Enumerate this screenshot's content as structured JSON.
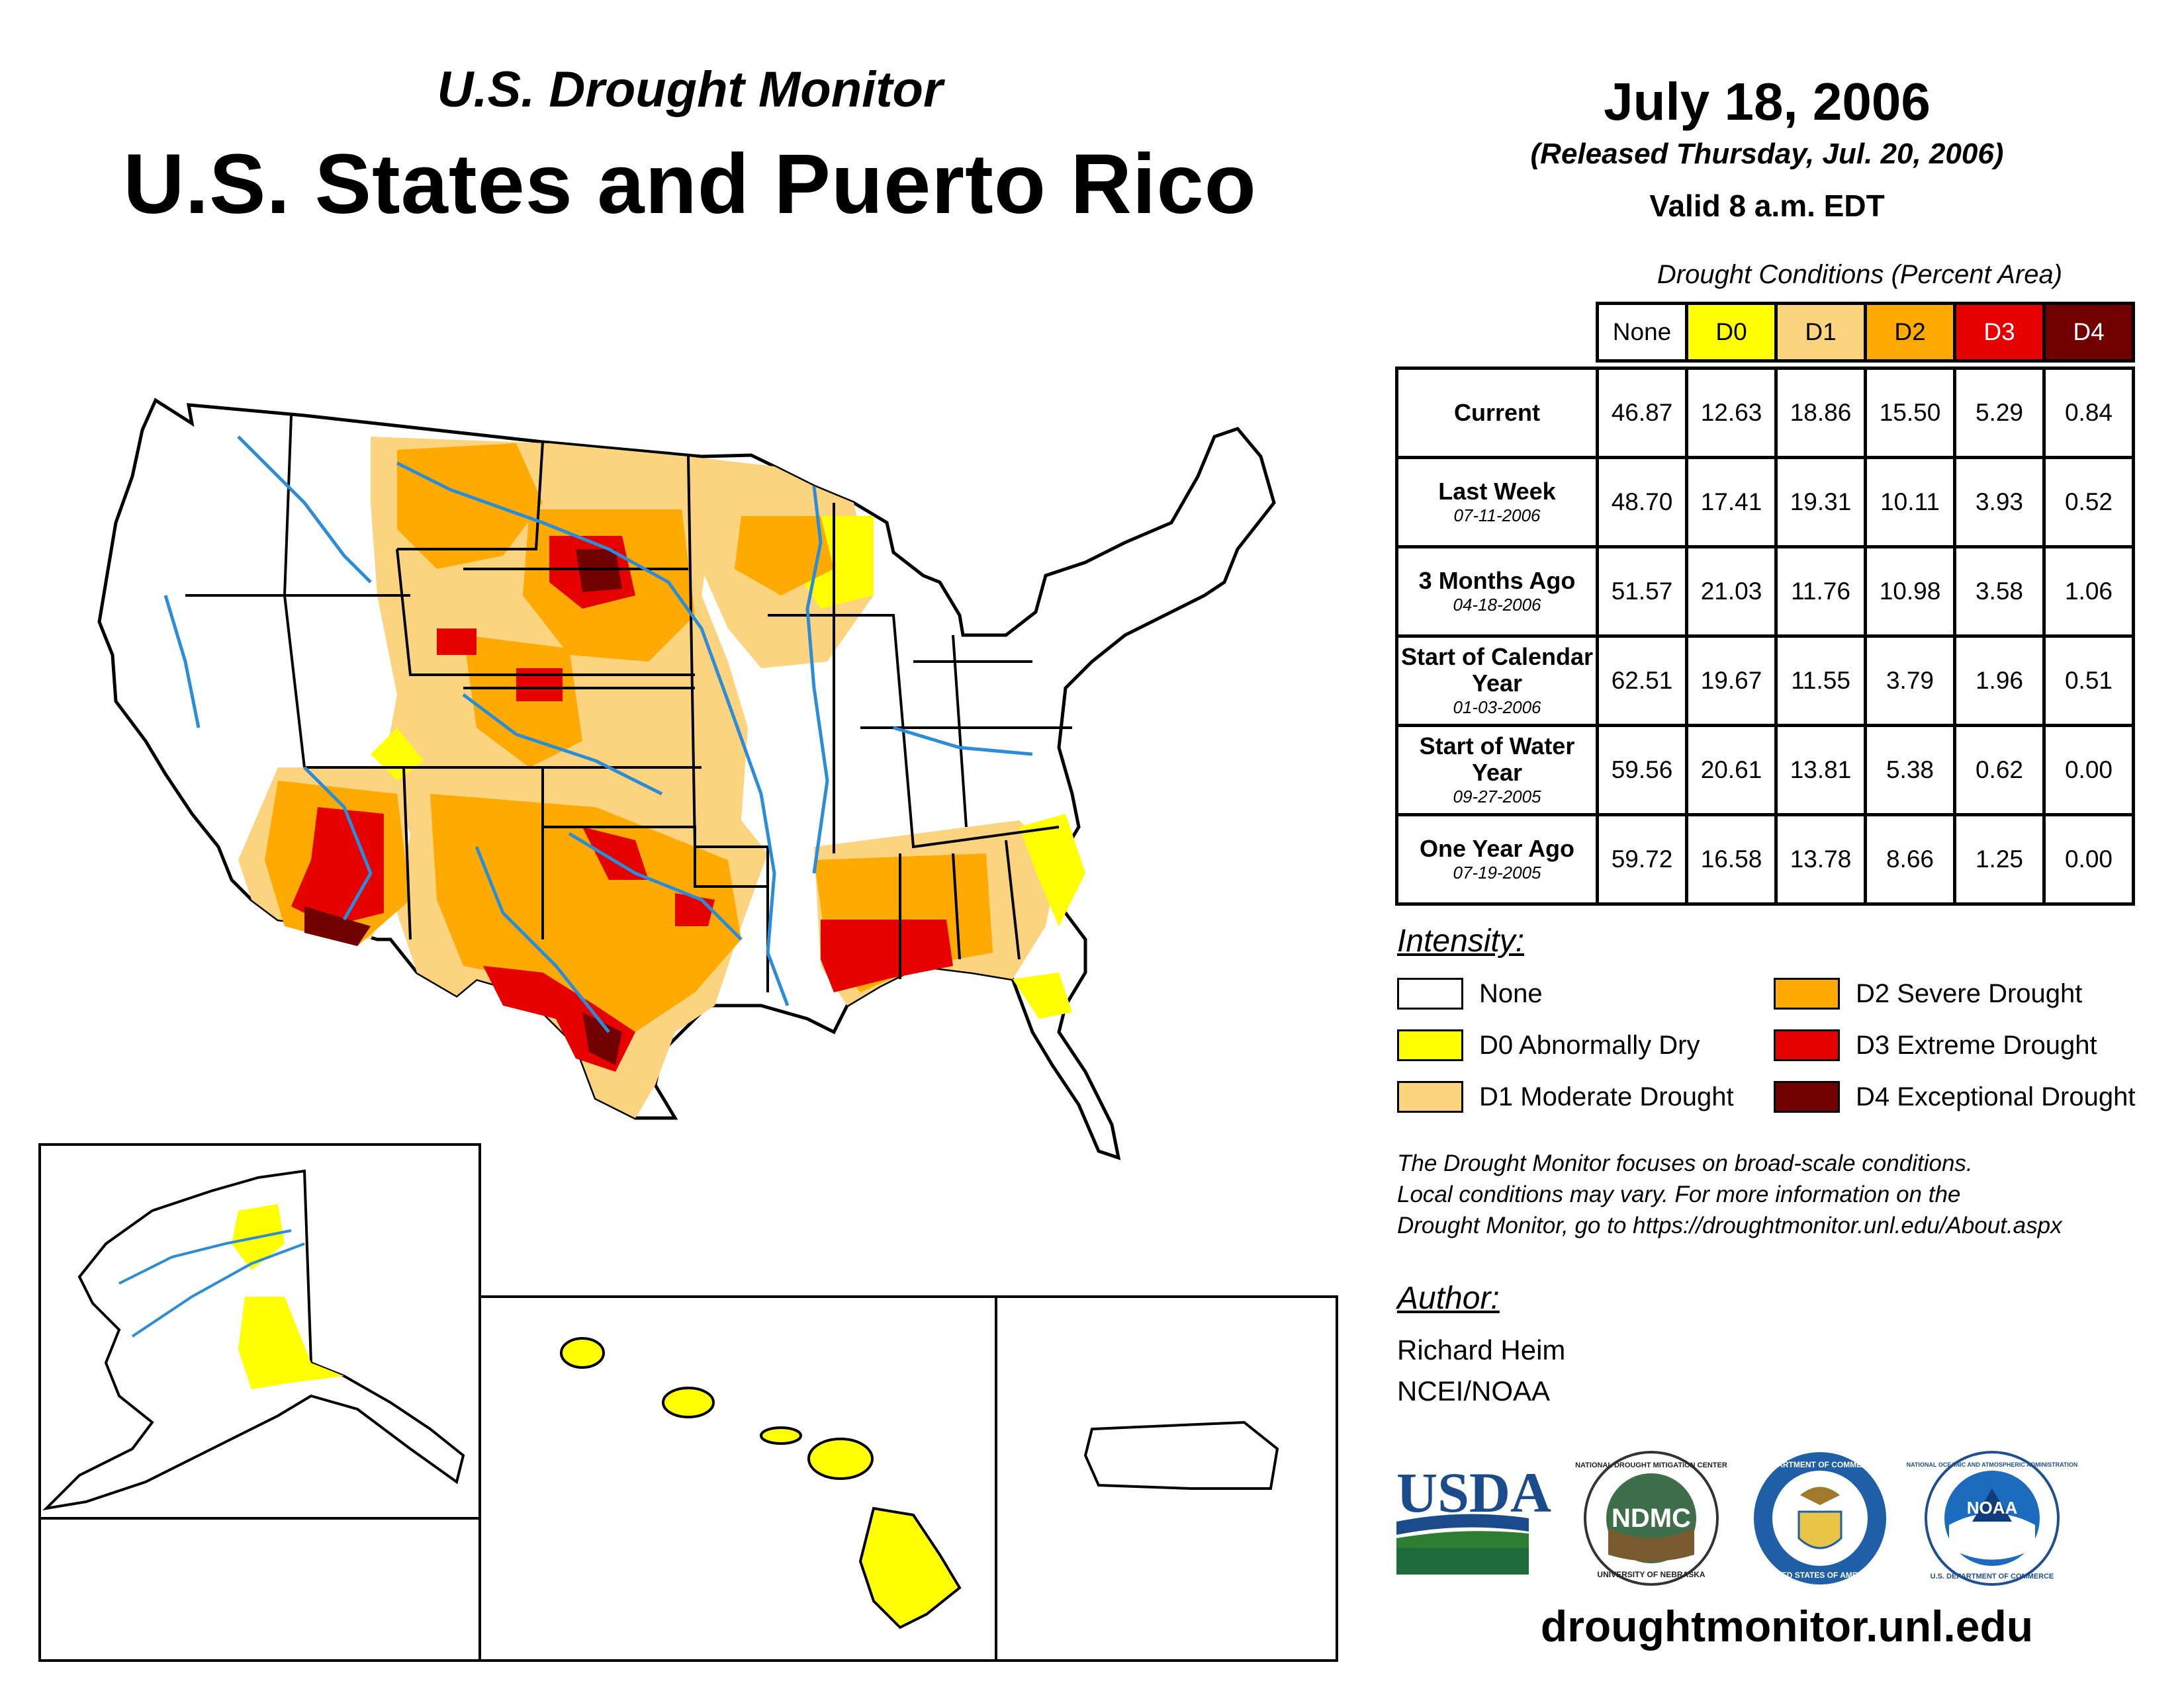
{
  "header": {
    "subtitle": "U.S. Drought Monitor",
    "title": "U.S. States and Puerto Rico",
    "date": "July 18, 2006",
    "released": "(Released Thursday, Jul. 20, 2006)",
    "valid": "Valid 8 a.m. EDT"
  },
  "table": {
    "caption": "Drought Conditions (Percent Area)",
    "columns": [
      "None",
      "D0",
      "D1",
      "D2",
      "D3",
      "D4"
    ],
    "column_colors": [
      "#ffffff",
      "#ffff00",
      "#fcd37f",
      "#ffaa00",
      "#e60000",
      "#730000"
    ],
    "rows": [
      {
        "label": "Current",
        "date": "",
        "values": [
          "46.87",
          "12.63",
          "18.86",
          "15.50",
          "5.29",
          "0.84"
        ]
      },
      {
        "label": "Last Week",
        "date": "07-11-2006",
        "values": [
          "48.70",
          "17.41",
          "19.31",
          "10.11",
          "3.93",
          "0.52"
        ]
      },
      {
        "label": "3 Months Ago",
        "date": "04-18-2006",
        "values": [
          "51.57",
          "21.03",
          "11.76",
          "10.98",
          "3.58",
          "1.06"
        ]
      },
      {
        "label": "Start of Calendar Year",
        "date": "01-03-2006",
        "values": [
          "62.51",
          "19.67",
          "11.55",
          "3.79",
          "1.96",
          "0.51"
        ]
      },
      {
        "label": "Start of Water Year",
        "date": "09-27-2005",
        "values": [
          "59.56",
          "20.61",
          "13.81",
          "5.38",
          "0.62",
          "0.00"
        ]
      },
      {
        "label": "One Year Ago",
        "date": "07-19-2005",
        "values": [
          "59.72",
          "16.58",
          "13.78",
          "8.66",
          "1.25",
          "0.00"
        ]
      }
    ]
  },
  "legend": {
    "heading": "Intensity:",
    "items": [
      {
        "label": "None",
        "color": "#ffffff"
      },
      {
        "label": "D0 Abnormally Dry",
        "color": "#ffff00"
      },
      {
        "label": "D1 Moderate Drought",
        "color": "#fcd37f"
      },
      {
        "label": "D2 Severe Drought",
        "color": "#ffaa00"
      },
      {
        "label": "D3 Extreme Drought",
        "color": "#e60000"
      },
      {
        "label": "D4 Exceptional Drought",
        "color": "#730000"
      }
    ]
  },
  "note": {
    "line1": "The Drought Monitor focuses on broad-scale conditions.",
    "line2": "Local conditions may vary. For more information on the",
    "line3": "Drought Monitor, go to https://droughtmonitor.unl.edu/About.aspx"
  },
  "author": {
    "heading": "Author:",
    "name": "Richard Heim",
    "org": "NCEI/NOAA"
  },
  "logos": {
    "usda": "USDA",
    "ndmc": "NDMC",
    "noaa": "NOAA",
    "ndmc_ring": "NATIONAL DROUGHT MITIGATION CENTER",
    "ndmc_ring2": "UNIVERSITY OF NEBRASKA",
    "doc_ring": "DEPARTMENT OF COMMERCE",
    "doc_ring2": "UNITED STATES OF AMERICA",
    "noaa_ring": "NATIONAL OCEANIC AND ATMOSPHERIC ADMINISTRATION",
    "noaa_ring2": "U.S. DEPARTMENT OF COMMERCE"
  },
  "website": "droughtmonitor.unl.edu"
}
